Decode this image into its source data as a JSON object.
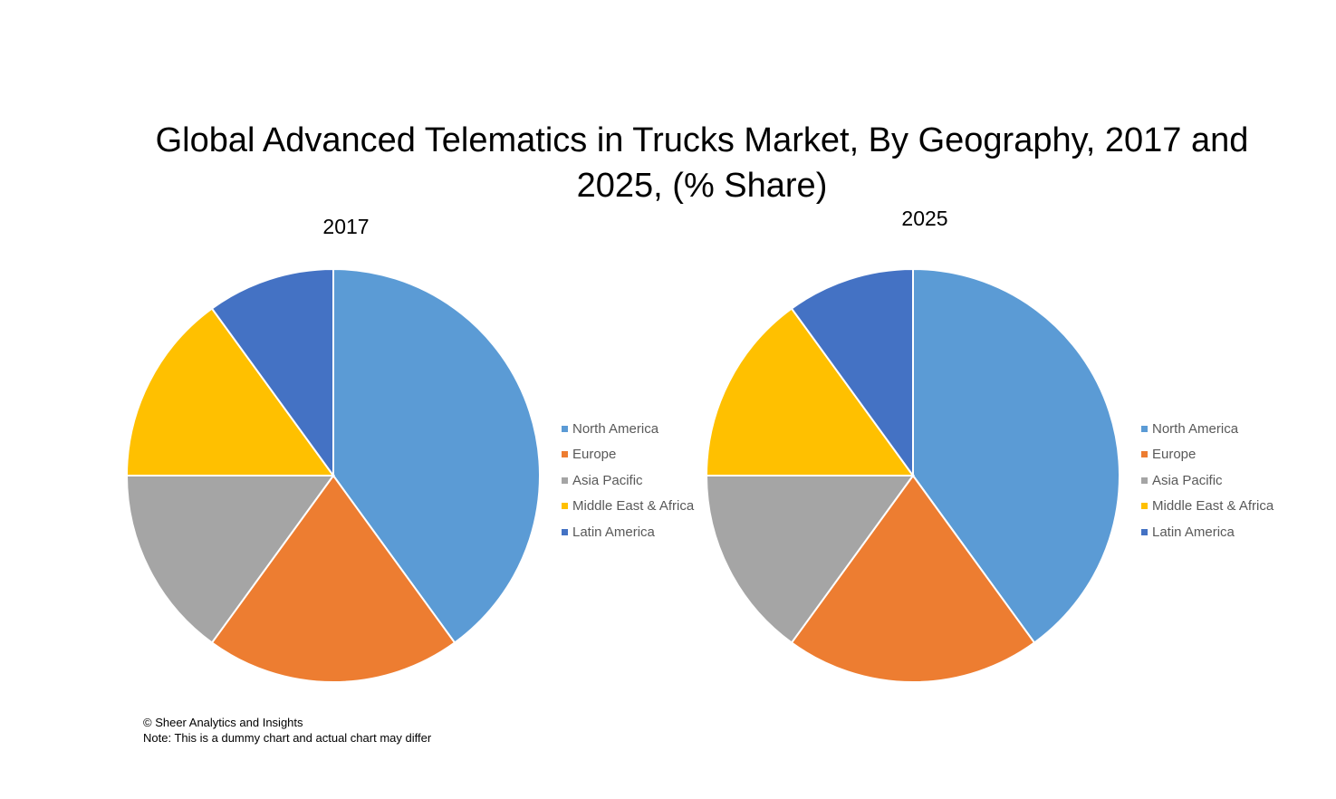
{
  "title": "Global Advanced Telematics in Trucks Market, By Geography, 2017 and 2025, (% Share)",
  "footer": {
    "copyright": "© Sheer Analytics and Insights",
    "note": "Note: This is a dummy chart and actual chart may differ"
  },
  "chart_data": [
    {
      "type": "pie",
      "title": "2017",
      "categories": [
        "North America",
        "Europe",
        "Asia Pacific",
        "Middle East & Africa",
        "Latin America"
      ],
      "values": [
        40,
        20,
        15,
        15,
        10
      ],
      "colors": [
        "#5B9BD5",
        "#ED7D31",
        "#A5A5A5",
        "#FFC000",
        "#4472C4"
      ],
      "legend": "right"
    },
    {
      "type": "pie",
      "title": "2025",
      "categories": [
        "North America",
        "Europe",
        "Asia Pacific",
        "Middle East & Africa",
        "Latin America"
      ],
      "values": [
        40,
        20,
        15,
        15,
        10
      ],
      "colors": [
        "#5B9BD5",
        "#ED7D31",
        "#A5A5A5",
        "#FFC000",
        "#4472C4"
      ],
      "legend": "right"
    }
  ]
}
